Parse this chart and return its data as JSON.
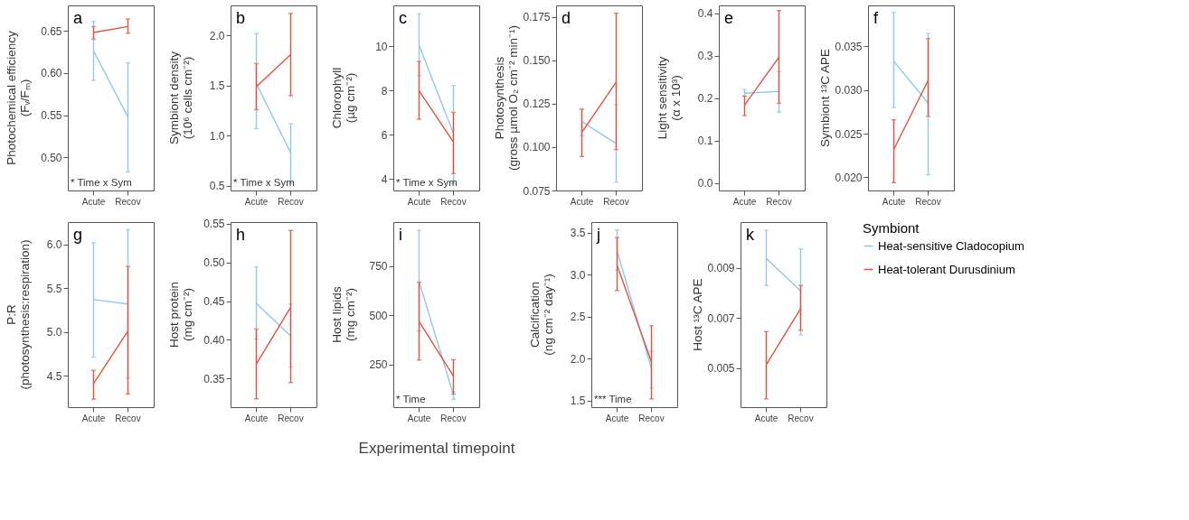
{
  "chart_data": [
    {
      "type": "line",
      "ylabel": "Photochemical efficiency (Fᵥ/Fₘ)",
      "categories": [
        "Acute",
        "Recov"
      ],
      "annotations": [
        "a",
        "* Time x Sym"
      ],
      "ylim": [
        0.461,
        0.68
      ],
      "yticks": [
        {
          "value": 0.5,
          "label": "0.50"
        },
        0.55,
        {
          "value": 0.6,
          "label": "0.60"
        },
        0.65
      ],
      "grid": false,
      "series": [
        {
          "color": "#8ecae6",
          "values": [
            0.626,
            0.548
          ],
          "errors": [
            [
              0.591,
              0.661
            ],
            [
              0.483,
              0.612
            ]
          ]
        },
        {
          "color": "#e0533c",
          "values": [
            0.648,
            0.655
          ],
          "errors": [
            [
              0.64,
              0.655
            ],
            [
              0.647,
              0.664
            ]
          ]
        }
      ]
    },
    {
      "type": "line",
      "ylabel": "Symbiont density (10⁶ cells cm⁻²)",
      "categories": [
        "Acute",
        "Recov"
      ],
      "annotations": [
        "b",
        "* Time x Sym"
      ],
      "ylim": [
        0.454,
        2.3
      ],
      "yticks": [
        0.5,
        {
          "value": 1,
          "label": "1.0"
        },
        1.5,
        {
          "value": 2,
          "label": "2.0"
        }
      ],
      "grid": false,
      "series": [
        {
          "color": "#8ecae6",
          "values": [
            1.52,
            0.83
          ],
          "errors": [
            [
              1.07,
              2.02
            ],
            [
              0.53,
              1.12
            ]
          ]
        },
        {
          "color": "#e0533c",
          "values": [
            1.49,
            1.81
          ],
          "errors": [
            [
              1.26,
              1.72
            ],
            [
              1.4,
              2.22
            ]
          ]
        }
      ]
    },
    {
      "type": "line",
      "ylabel": "Chlorophyll (µg cm⁻²)",
      "categories": [
        "Acute",
        "Recov"
      ],
      "annotations": [
        "c",
        "* Time x Sym"
      ],
      "ylim": [
        3.48,
        11.84
      ],
      "yticks": [
        4,
        6,
        8,
        10
      ],
      "grid": false,
      "series": [
        {
          "color": "#8ecae6",
          "values": [
            10.04,
            6.06
          ],
          "errors": [
            [
              8.66,
              11.47
            ],
            [
              3.8,
              8.22
            ]
          ]
        },
        {
          "color": "#e0533c",
          "values": [
            7.98,
            5.67
          ],
          "errors": [
            [
              6.7,
              9.31
            ],
            [
              4.24,
              7.01
            ]
          ]
        }
      ]
    },
    {
      "type": "line",
      "ylabel": "Photosynthesis (gross µmol O₂ cm⁻² min⁻¹)",
      "categories": [
        "Acute",
        "Recov"
      ],
      "annotations": [
        "d"
      ],
      "ylim": [
        0.075,
        0.1816
      ],
      "yticks": [
        0.075,
        {
          "value": 0.1,
          "label": "0.100"
        },
        0.125,
        {
          "value": 0.15,
          "label": "0.150"
        },
        0.175
      ],
      "grid": false,
      "series": [
        {
          "color": "#8ecae6",
          "values": [
            0.1147,
            0.102
          ],
          "errors": [
            [
              0.1066,
              0.1223
            ],
            [
              0.0798,
              0.1244
            ]
          ]
        },
        {
          "color": "#e0533c",
          "values": [
            0.1085,
            0.1375
          ],
          "errors": [
            [
              0.0946,
              0.1217
            ],
            [
              0.0985,
              0.1771
            ]
          ]
        }
      ]
    },
    {
      "type": "line",
      "ylabel": "Light sensitivity (α x 10³)",
      "categories": [
        "Acute",
        "Recov"
      ],
      "annotations": [
        "e"
      ],
      "ylim": [
        -0.0175,
        0.419
      ],
      "yticks": [
        {
          "value": 0,
          "label": "0.0"
        },
        0.1,
        0.2,
        0.3,
        0.4
      ],
      "grid": false,
      "series": [
        {
          "color": "#8ecae6",
          "values": [
            0.212,
            0.216
          ],
          "errors": [
            [
              0.205,
              0.221
            ],
            [
              0.167,
              0.263
            ]
          ]
        },
        {
          "color": "#e0533c",
          "values": [
            0.184,
            0.297
          ],
          "errors": [
            [
              0.159,
              0.205
            ],
            [
              0.188,
              0.407
            ]
          ]
        }
      ]
    },
    {
      "type": "line",
      "ylabel": "Symbiont ¹³C APE",
      "categories": [
        "Acute",
        "Recov"
      ],
      "annotations": [
        "f"
      ],
      "ylim": [
        0.0185,
        0.0397
      ],
      "yticks": [
        {
          "value": 0.02,
          "label": "0.020"
        },
        0.025,
        {
          "value": 0.03,
          "label": "0.030"
        },
        0.035
      ],
      "grid": false,
      "series": [
        {
          "color": "#8ecae6",
          "values": [
            0.0333,
            0.0285
          ],
          "errors": [
            [
              0.028,
              0.0389
            ],
            [
              0.0203,
              0.0365
            ]
          ]
        },
        {
          "color": "#e0533c",
          "values": [
            0.0232,
            0.0311
          ],
          "errors": [
            [
              0.0194,
              0.0266
            ],
            [
              0.027,
              0.0359
            ]
          ]
        }
      ]
    },
    {
      "type": "line",
      "ylabel": "P:R (photosynthesis:respiration)",
      "categories": [
        "Acute",
        "Recov"
      ],
      "annotations": [
        "g"
      ],
      "ylim": [
        4.139,
        6.257
      ],
      "yticks": [
        4.5,
        {
          "value": 5,
          "label": "5.0"
        },
        5.5,
        {
          "value": 6,
          "label": "6.0"
        }
      ],
      "grid": false,
      "series": [
        {
          "color": "#8ecae6",
          "values": [
            5.37,
            5.32
          ],
          "errors": [
            [
              4.71,
              6.02
            ],
            [
              4.47,
              6.17
            ]
          ]
        },
        {
          "color": "#e0533c",
          "values": [
            4.41,
            5.01
          ],
          "errors": [
            [
              4.23,
              4.56
            ],
            [
              4.29,
              5.75
            ]
          ]
        }
      ]
    },
    {
      "type": "line",
      "ylabel": "Host protein (mg cm⁻²)",
      "categories": [
        "Acute",
        "Recov"
      ],
      "annotations": [
        "h"
      ],
      "ylim": [
        0.3133,
        0.5518
      ],
      "yticks": [
        0.35,
        {
          "value": 0.4,
          "label": "0.40"
        },
        0.45,
        {
          "value": 0.5,
          "label": "0.50"
        },
        0.55
      ],
      "grid": false,
      "series": [
        {
          "color": "#8ecae6",
          "values": [
            0.447,
            0.405
          ],
          "errors": [
            [
              0.401,
              0.494
            ],
            [
              0.365,
              0.446
            ]
          ]
        },
        {
          "color": "#e0533c",
          "values": [
            0.369,
            0.442
          ],
          "errors": [
            [
              0.324,
              0.414
            ],
            [
              0.345,
              0.541
            ]
          ]
        }
      ]
    },
    {
      "type": "line",
      "ylabel": "Host lipids (mg cm⁻²)",
      "xlabel": "Experimental timepoint",
      "categories": [
        "Acute",
        "Recov"
      ],
      "annotations": [
        "i",
        "* Time"
      ],
      "ylim": [
        32,
        975
      ],
      "yticks": [
        250,
        500,
        750
      ],
      "grid": false,
      "series": [
        {
          "color": "#8ecae6",
          "values": [
            672,
            95
          ],
          "errors": [
            [
              420,
              934
            ],
            [
              72,
              109
            ]
          ]
        },
        {
          "color": "#e0533c",
          "values": [
            468,
            190
          ],
          "errors": [
            [
              272,
              669
            ],
            [
              98,
              274
            ]
          ]
        }
      ]
    },
    {
      "type": "line",
      "ylabel": "Calcification (ng cm⁻² day⁻¹)",
      "categories": [
        "Acute",
        "Recov"
      ],
      "annotations": [
        "j",
        "*** Time"
      ],
      "ylim": [
        1.422,
        3.624
      ],
      "yticks": [
        1.5,
        {
          "value": 2,
          "label": "2.0"
        },
        2.5,
        {
          "value": 3,
          "label": "3.0"
        },
        3.5
      ],
      "grid": false,
      "series": [
        {
          "color": "#8ecae6",
          "values": [
            3.28,
            1.88
          ],
          "errors": [
            [
              3.05,
              3.53
            ],
            [
              1.65,
              2.09
            ]
          ]
        },
        {
          "color": "#e0533c",
          "values": [
            3.11,
            1.96
          ],
          "errors": [
            [
              2.81,
              3.44
            ],
            [
              1.52,
              2.39
            ]
          ]
        }
      ]
    },
    {
      "type": "line",
      "ylabel": "Host ¹³C APE",
      "categories": [
        "Acute",
        "Recov"
      ],
      "annotations": [
        "k"
      ],
      "ylim": [
        0.00344,
        0.01084
      ],
      "yticks": [
        0.005,
        0.007,
        0.009
      ],
      "grid": false,
      "legend": "right",
      "legend_title": "Symbiont",
      "series": [
        {
          "name": "Heat-sensitive Cladocopium",
          "color": "#8ecae6",
          "values": [
            0.00939,
            0.00809
          ],
          "errors": [
            [
              0.0083,
              0.01052
            ],
            [
              0.00633,
              0.00977
            ]
          ]
        },
        {
          "name": "Heat-tolerant Durusdinium",
          "color": "#e0533c",
          "values": [
            0.00514,
            0.00738
          ],
          "errors": [
            [
              0.00377,
              0.00646
            ],
            [
              0.00651,
              0.00831
            ]
          ]
        }
      ]
    }
  ]
}
